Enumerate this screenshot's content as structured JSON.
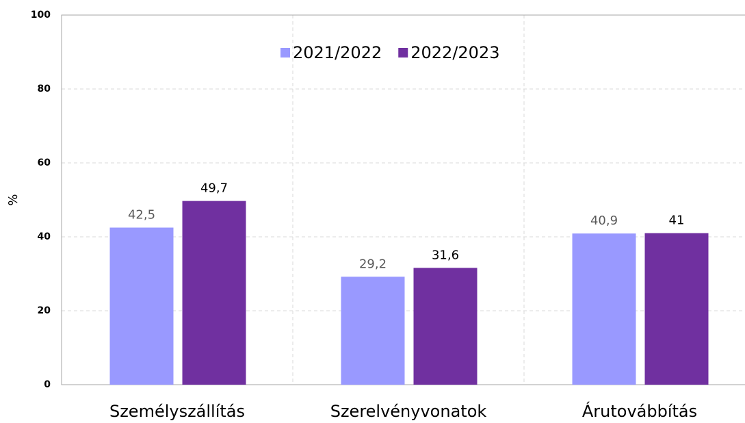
{
  "chart_data": {
    "type": "bar",
    "y_label": "%",
    "categories": [
      "Személyszállítás",
      "Szerelvényvonatok",
      "Árutovábbítás"
    ],
    "series": [
      {
        "name": "2021/2022",
        "color": "#9999ff",
        "values": [
          42.5,
          29.2,
          40.9
        ],
        "value_labels": [
          "42,5",
          "29,2",
          "40,9"
        ]
      },
      {
        "name": "2022/2023",
        "color": "#7030a0",
        "values": [
          49.7,
          31.6,
          41
        ],
        "value_labels": [
          "49,7",
          "31,6",
          "41"
        ]
      }
    ],
    "ylim": [
      0,
      100
    ],
    "yticks": [
      0,
      20,
      40,
      60,
      80,
      100
    ],
    "grid": true,
    "legend": "top"
  }
}
